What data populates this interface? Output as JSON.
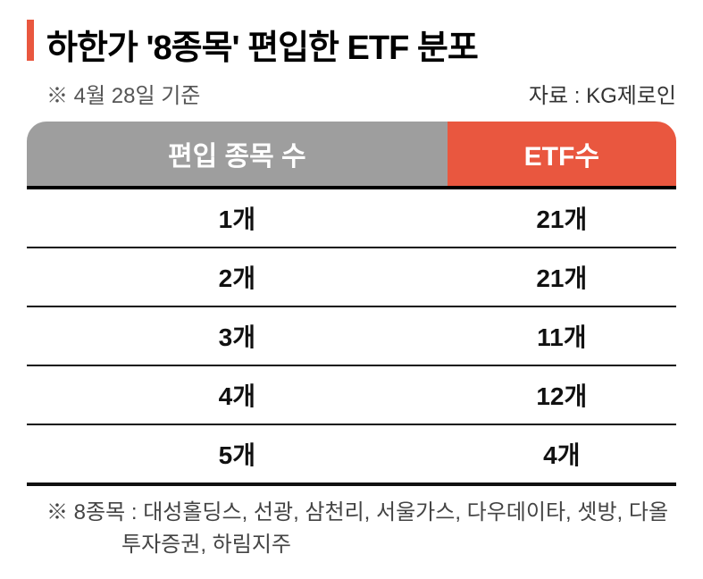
{
  "title": "하한가 '8종목' 편입한 ETF 분포",
  "title_fontsize": 38,
  "accent_bar_color": "#e9573f",
  "date_note": "※ 4월 28일 기준",
  "source_label": "자료 : KG제로인",
  "meta_fontsize": 24,
  "table": {
    "columns": [
      "편입 종목 수",
      "ETF수"
    ],
    "header_colors": [
      "#9e9e9e",
      "#e9573f"
    ],
    "header_fontsize": 30,
    "cell_fontsize": 28,
    "rows": [
      [
        "1개",
        "21개"
      ],
      [
        "2개",
        "21개"
      ],
      [
        "3개",
        "11개"
      ],
      [
        "4개",
        "12개"
      ],
      [
        "5개",
        "4개"
      ]
    ],
    "row_border_color": "#111111",
    "header_bottom_border_color": "#000000"
  },
  "footnote_prefix": "※ 8종목 : ",
  "footnote_body": "대성홀딩스, 선광, 삼천리, 서울가스, 다우데이타, 셋방, 다올투자증권, 하림지주",
  "footnote_fontsize": 24,
  "background_color": "#ffffff"
}
